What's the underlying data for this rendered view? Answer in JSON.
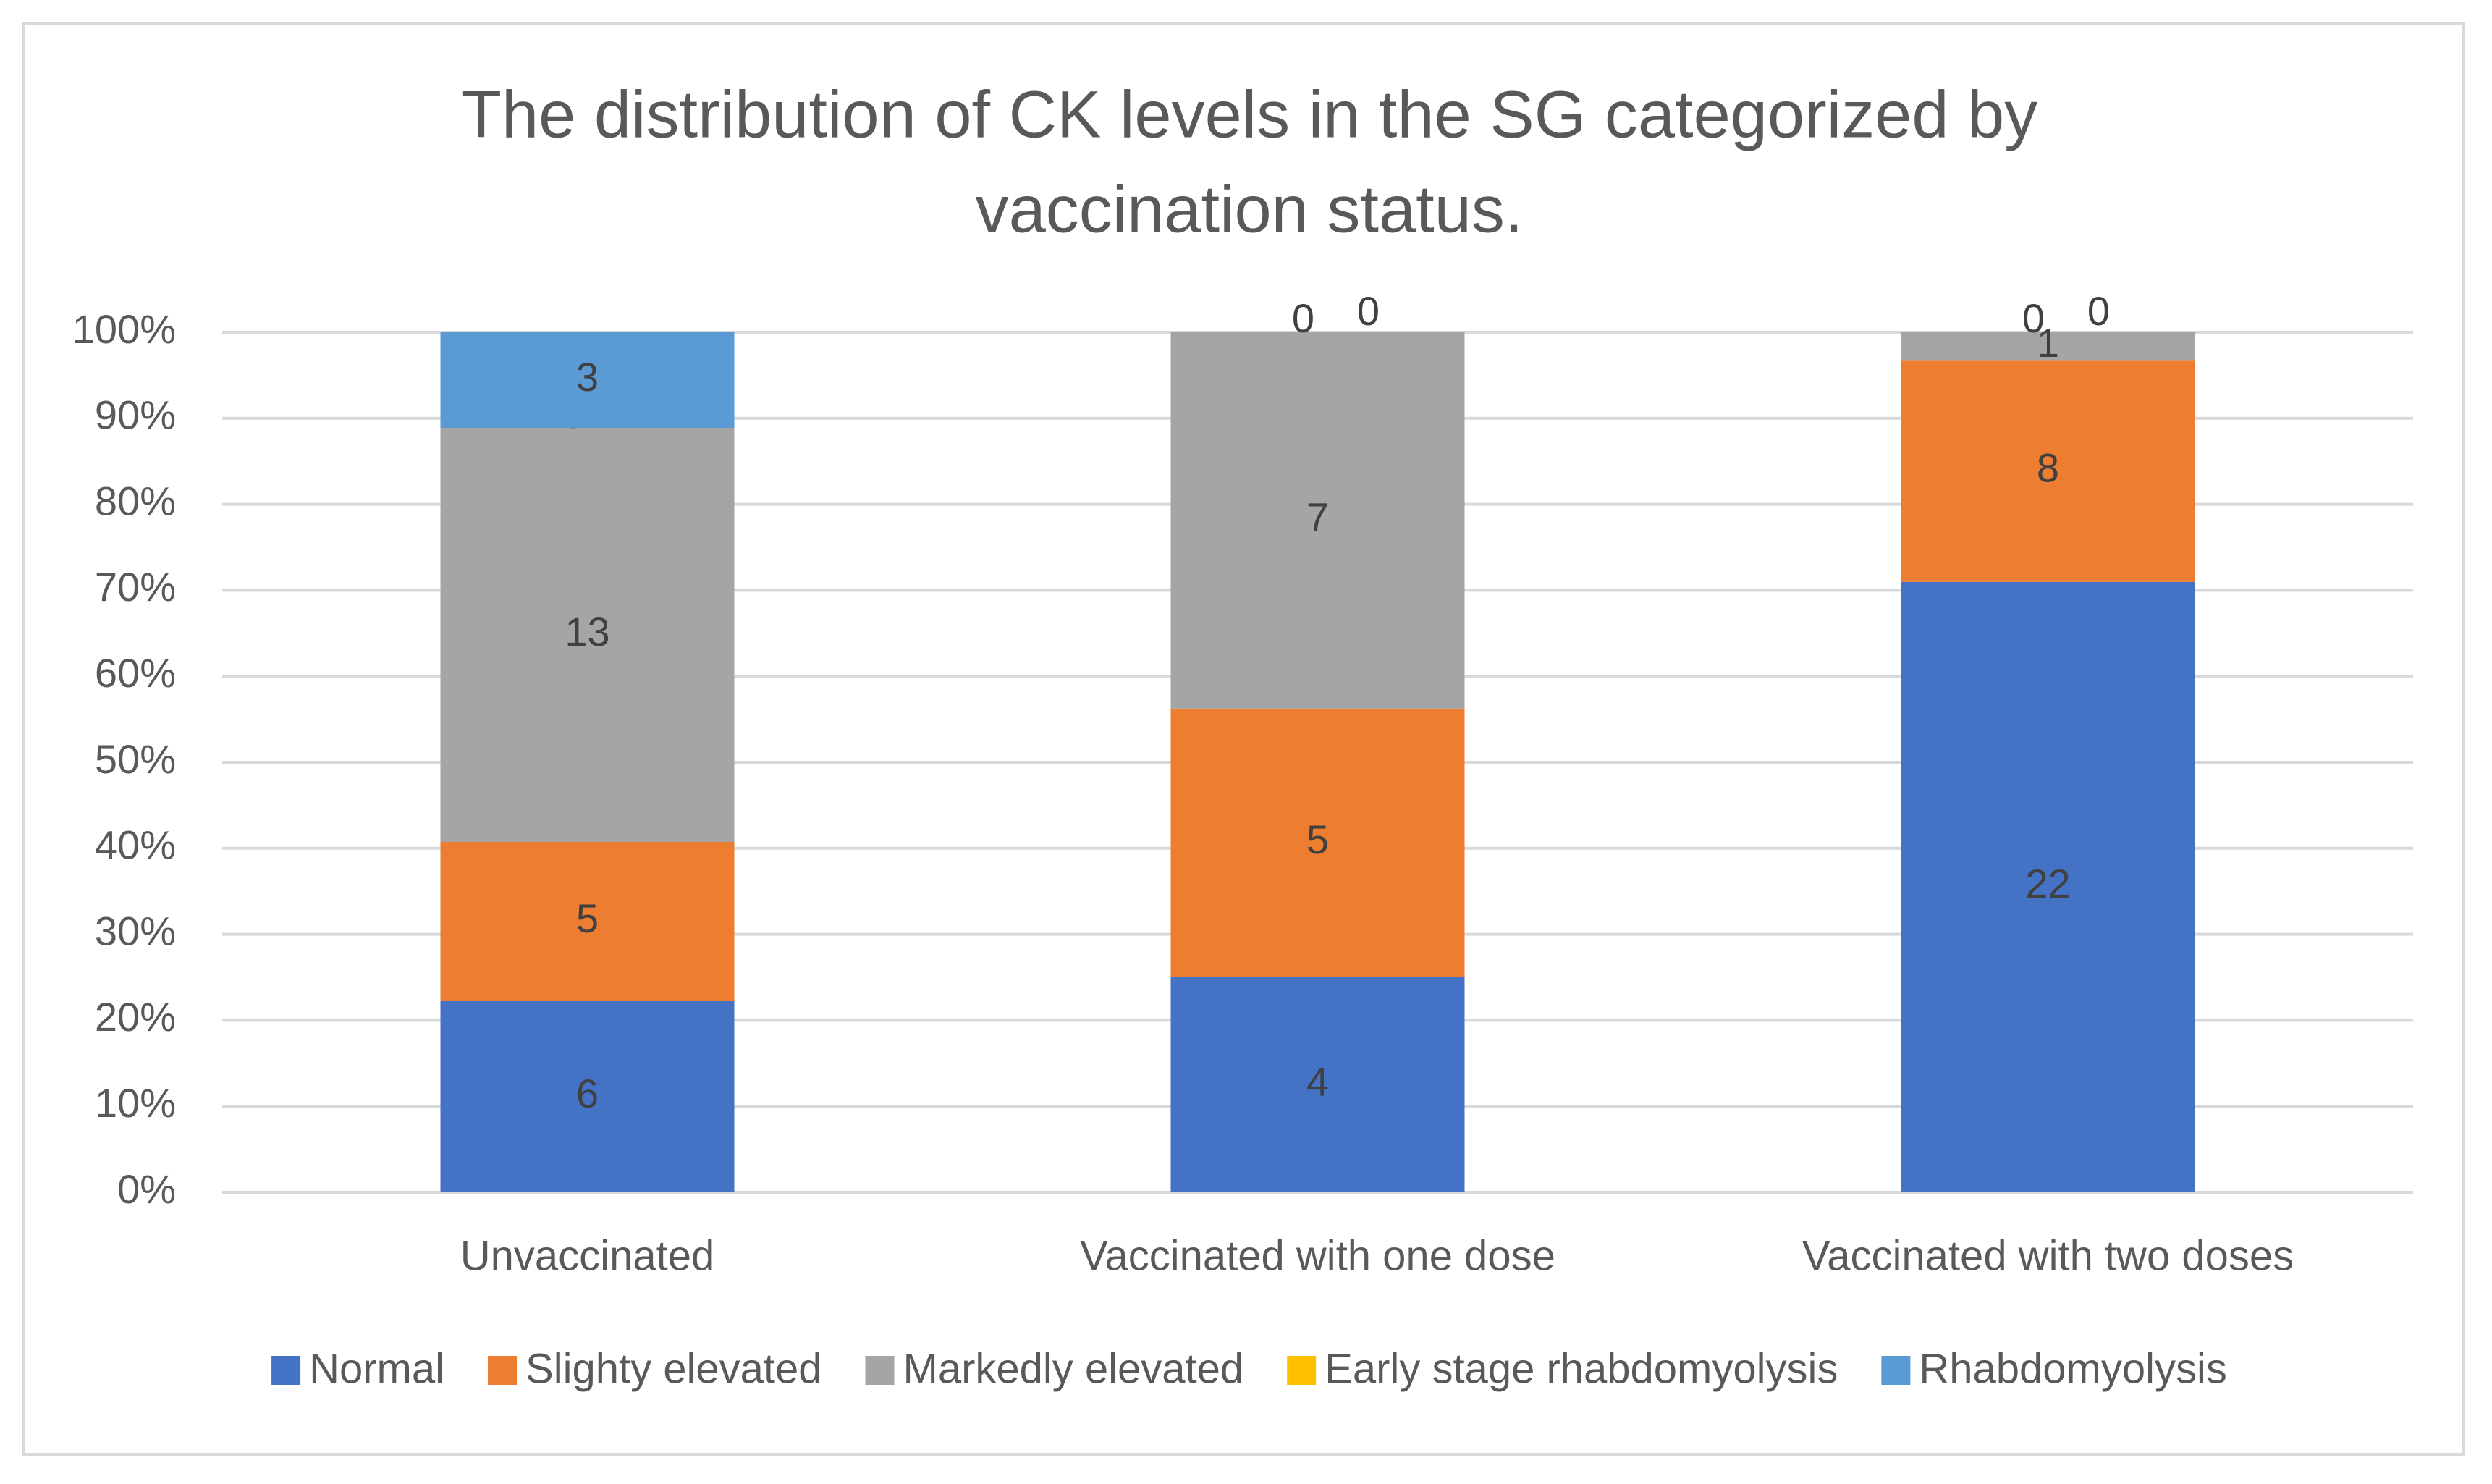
{
  "chart_data": {
    "type": "bar",
    "stacking": "percent",
    "title": [
      "The distribution of CK levels in the SG categorized by",
      "vaccination status."
    ],
    "categories": [
      "Unvaccinated",
      "Vaccinated with one dose",
      "Vaccinated with two doses"
    ],
    "series": [
      {
        "name": "Normal",
        "color": "#4472c4",
        "values": [
          6,
          4,
          22
        ]
      },
      {
        "name": "Slighty elevated",
        "color": "#ed7d31",
        "values": [
          5,
          5,
          8
        ]
      },
      {
        "name": "Markedly elevated",
        "color": "#a5a5a5",
        "values": [
          13,
          7,
          1
        ]
      },
      {
        "name": "Early stage rhabdomyolysis",
        "color": "#ffc000",
        "values": [
          0,
          0,
          0
        ]
      },
      {
        "name": "Rhabdomyolysis",
        "color": "#5b9bd5",
        "values": [
          3,
          0,
          0
        ]
      }
    ],
    "ylim": [
      0,
      100
    ],
    "yticks": [
      {
        "value": 0,
        "label": "0%"
      },
      {
        "value": 10,
        "label": "10%"
      },
      {
        "value": 20,
        "label": "20%"
      },
      {
        "value": 30,
        "label": "30%"
      },
      {
        "value": 40,
        "label": "40%"
      },
      {
        "value": 50,
        "label": "50%"
      },
      {
        "value": 60,
        "label": "60%"
      },
      {
        "value": 70,
        "label": "70%"
      },
      {
        "value": 80,
        "label": "80%"
      },
      {
        "value": 90,
        "label": "90%"
      },
      {
        "value": 100,
        "label": "100%"
      }
    ],
    "grid": true,
    "legend": "bottom"
  }
}
